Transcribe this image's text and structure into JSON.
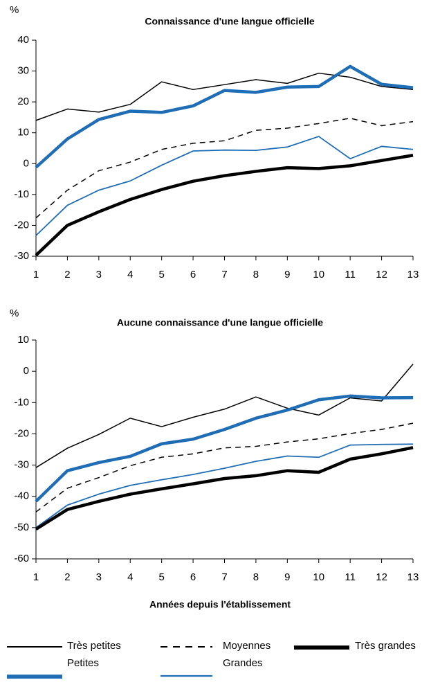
{
  "chart_data": [
    {
      "type": "line",
      "title": "Connaissance d'une langue officielle",
      "y_label": "%",
      "x": [
        1,
        2,
        3,
        4,
        5,
        6,
        7,
        8,
        9,
        10,
        11,
        12,
        13
      ],
      "xlim": [
        1,
        13
      ],
      "xticks": [
        1,
        2,
        3,
        4,
        5,
        6,
        7,
        8,
        9,
        10,
        11,
        12,
        13
      ],
      "ylim": [
        -30,
        40
      ],
      "yticks": [
        -30,
        -20,
        -10,
        0,
        10,
        20,
        30,
        40
      ],
      "series": [
        {
          "name": "Très petites",
          "color": "#000000",
          "line_width": 1.5,
          "dash": false,
          "values": [
            14,
            17.7,
            16.7,
            19.2,
            26.5,
            24,
            25.6,
            27.2,
            26,
            29.3,
            28,
            25,
            24
          ]
        },
        {
          "name": "Petites",
          "color": "#1f6db4",
          "line_width": 4.5,
          "dash": false,
          "values": [
            -1.2,
            8,
            14.3,
            17,
            16.6,
            18.7,
            23.7,
            23.1,
            24.8,
            25,
            31.5,
            25.7,
            24.6
          ]
        },
        {
          "name": "Moyennes",
          "color": "#000000",
          "line_width": 1.5,
          "dash": true,
          "values": [
            -17.6,
            -8.6,
            -2.3,
            0.5,
            4.6,
            6.6,
            7.4,
            10.8,
            11.5,
            13,
            14.7,
            12.3,
            13.6
          ]
        },
        {
          "name": "Grandes",
          "color": "#1f6db4",
          "line_width": 1.8,
          "dash": false,
          "values": [
            -23.3,
            -13.5,
            -8.6,
            -5.6,
            -0.5,
            4.1,
            4.4,
            4.3,
            5.4,
            8.8,
            1.6,
            5.6,
            4.6
          ]
        },
        {
          "name": "Très grandes",
          "color": "#000000",
          "line_width": 4.5,
          "dash": false,
          "values": [
            -29.7,
            -20,
            -15.6,
            -11.6,
            -8.4,
            -5.7,
            -3.9,
            -2.5,
            -1.3,
            -1.6,
            -0.7,
            1,
            2.7
          ]
        }
      ]
    },
    {
      "type": "line",
      "title": "Aucune connaissance d'une langue officielle",
      "y_label": "%",
      "x_label": "Années depuis l'établissement",
      "x": [
        1,
        2,
        3,
        4,
        5,
        6,
        7,
        8,
        9,
        10,
        11,
        12,
        13
      ],
      "xlim": [
        1,
        13
      ],
      "xticks": [
        1,
        2,
        3,
        4,
        5,
        6,
        7,
        8,
        9,
        10,
        11,
        12,
        13
      ],
      "ylim": [
        -60,
        10
      ],
      "yticks": [
        -60,
        -50,
        -40,
        -30,
        -20,
        -10,
        0,
        10
      ],
      "series": [
        {
          "name": "Très petites",
          "color": "#000000",
          "line_width": 1.5,
          "dash": false,
          "values": [
            -30.8,
            -24.6,
            -20.2,
            -15,
            -17.7,
            -14.7,
            -12.1,
            -8.2,
            -11.8,
            -14,
            -8.5,
            -9.5,
            2.3
          ]
        },
        {
          "name": "Petites",
          "color": "#1f6db4",
          "line_width": 4.5,
          "dash": false,
          "values": [
            -41.6,
            -31.8,
            -29.2,
            -27.2,
            -23.2,
            -21.7,
            -18.6,
            -15,
            -12.4,
            -9.1,
            -7.9,
            -8.5,
            -8.4
          ]
        },
        {
          "name": "Moyennes",
          "color": "#000000",
          "line_width": 1.5,
          "dash": true,
          "values": [
            -45,
            -37.4,
            -34,
            -30.2,
            -27.5,
            -26.4,
            -24.5,
            -24,
            -22.6,
            -21.6,
            -19.9,
            -18.6,
            -16.6
          ]
        },
        {
          "name": "Grandes",
          "color": "#1f6db4",
          "line_width": 1.8,
          "dash": false,
          "values": [
            -50,
            -42.8,
            -39.3,
            -36.5,
            -34.7,
            -33,
            -31,
            -28.8,
            -27.1,
            -27.5,
            -23.6,
            -23.4,
            -23.3
          ]
        },
        {
          "name": "Très grandes",
          "color": "#000000",
          "line_width": 4.5,
          "dash": false,
          "values": [
            -50.5,
            -44.2,
            -41.6,
            -39.3,
            -37.6,
            -36,
            -34.3,
            -33.4,
            -31.8,
            -32.3,
            -28.1,
            -26.4,
            -24.4
          ]
        }
      ]
    }
  ]
}
